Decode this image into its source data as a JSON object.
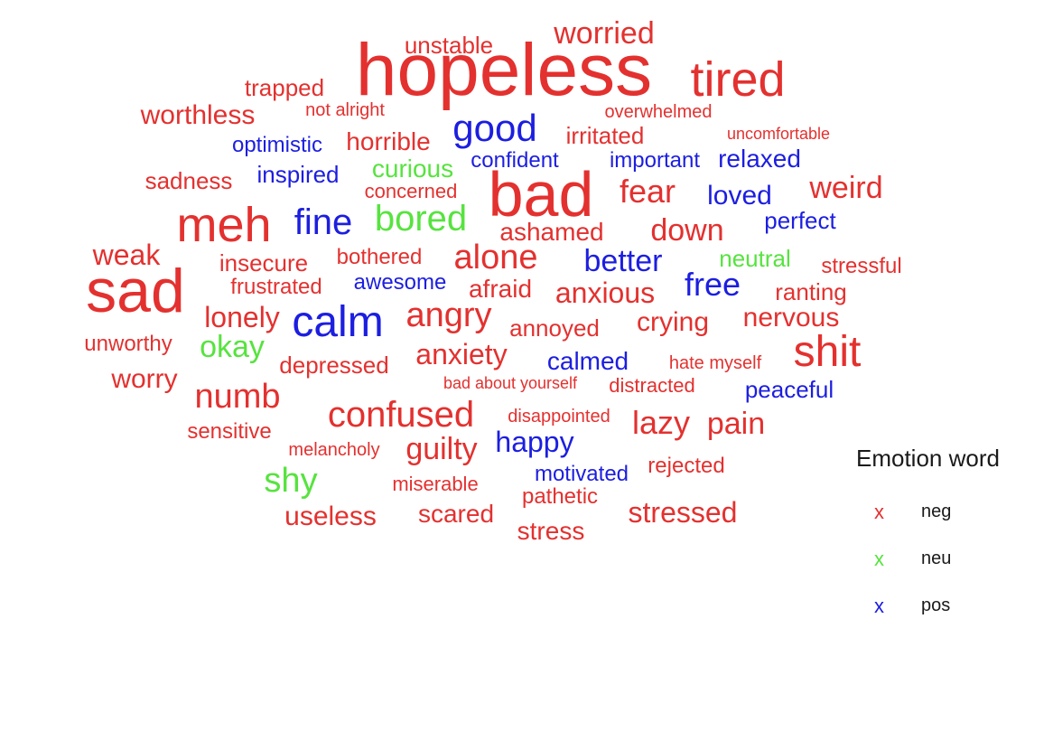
{
  "legend": {
    "title": "Emotion word",
    "marker": "x",
    "items": [
      {
        "label": "neg",
        "color": "#e3312f"
      },
      {
        "label": "neu",
        "color": "#57e33f"
      },
      {
        "label": "pos",
        "color": "#1c1ee0"
      }
    ]
  },
  "words": [
    {
      "text": "hopeless",
      "cat": "neg"
    },
    {
      "text": "bad",
      "cat": "neg"
    },
    {
      "text": "sad",
      "cat": "neg"
    },
    {
      "text": "meh",
      "cat": "neg"
    },
    {
      "text": "tired",
      "cat": "neg"
    },
    {
      "text": "shit",
      "cat": "neg"
    },
    {
      "text": "calm",
      "cat": "pos"
    },
    {
      "text": "confused",
      "cat": "neg"
    },
    {
      "text": "good",
      "cat": "pos"
    },
    {
      "text": "bored",
      "cat": "neu"
    },
    {
      "text": "fine",
      "cat": "pos"
    },
    {
      "text": "alone",
      "cat": "neg"
    },
    {
      "text": "worried",
      "cat": "neg"
    },
    {
      "text": "angry",
      "cat": "neg"
    },
    {
      "text": "fear",
      "cat": "neg"
    },
    {
      "text": "weird",
      "cat": "neg"
    },
    {
      "text": "numb",
      "cat": "neg"
    },
    {
      "text": "shy",
      "cat": "neu"
    },
    {
      "text": "free",
      "cat": "pos"
    },
    {
      "text": "better",
      "cat": "pos"
    },
    {
      "text": "down",
      "cat": "neg"
    },
    {
      "text": "lazy",
      "cat": "neg"
    },
    {
      "text": "pain",
      "cat": "neg"
    },
    {
      "text": "guilty",
      "cat": "neg"
    },
    {
      "text": "happy",
      "cat": "pos"
    },
    {
      "text": "okay",
      "cat": "neu"
    },
    {
      "text": "lonely",
      "cat": "neg"
    },
    {
      "text": "anxious",
      "cat": "neg"
    },
    {
      "text": "anxiety",
      "cat": "neg"
    },
    {
      "text": "crying",
      "cat": "neg"
    },
    {
      "text": "nervous",
      "cat": "neg"
    },
    {
      "text": "useless",
      "cat": "neg"
    },
    {
      "text": "stressed",
      "cat": "neg"
    },
    {
      "text": "weak",
      "cat": "neg"
    },
    {
      "text": "worry",
      "cat": "neg"
    },
    {
      "text": "worthless",
      "cat": "neg"
    },
    {
      "text": "loved",
      "cat": "pos"
    },
    {
      "text": "relaxed",
      "cat": "pos"
    },
    {
      "text": "horrible",
      "cat": "neg"
    },
    {
      "text": "curious",
      "cat": "neu"
    },
    {
      "text": "unstable",
      "cat": "neg"
    },
    {
      "text": "trapped",
      "cat": "neg"
    },
    {
      "text": "irritated",
      "cat": "neg"
    },
    {
      "text": "scared",
      "cat": "neg"
    },
    {
      "text": "ashamed",
      "cat": "neg"
    },
    {
      "text": "afraid",
      "cat": "neg"
    },
    {
      "text": "calmed",
      "cat": "pos"
    },
    {
      "text": "perfect",
      "cat": "pos"
    },
    {
      "text": "neutral",
      "cat": "neu"
    },
    {
      "text": "ranting",
      "cat": "neg"
    },
    {
      "text": "stress",
      "cat": "neg"
    },
    {
      "text": "insecure",
      "cat": "neg"
    },
    {
      "text": "annoyed",
      "cat": "neg"
    },
    {
      "text": "depressed",
      "cat": "neg"
    },
    {
      "text": "peaceful",
      "cat": "pos"
    },
    {
      "text": "inspired",
      "cat": "pos"
    },
    {
      "text": "sadness",
      "cat": "neg"
    },
    {
      "text": "unworthy",
      "cat": "neg"
    },
    {
      "text": "sensitive",
      "cat": "neg"
    },
    {
      "text": "optimistic",
      "cat": "pos"
    },
    {
      "text": "important",
      "cat": "pos"
    },
    {
      "text": "confident",
      "cat": "pos"
    },
    {
      "text": "stressful",
      "cat": "neg"
    },
    {
      "text": "bothered",
      "cat": "neg"
    },
    {
      "text": "frustrated",
      "cat": "neg"
    },
    {
      "text": "awesome",
      "cat": "pos"
    },
    {
      "text": "concerned",
      "cat": "neg"
    },
    {
      "text": "motivated",
      "cat": "pos"
    },
    {
      "text": "rejected",
      "cat": "neg"
    },
    {
      "text": "pathetic",
      "cat": "neg"
    },
    {
      "text": "miserable",
      "cat": "neg"
    },
    {
      "text": "melancholy",
      "cat": "neg"
    },
    {
      "text": "disappointed",
      "cat": "neg"
    },
    {
      "text": "distracted",
      "cat": "neg"
    },
    {
      "text": "hate myself",
      "cat": "neg"
    },
    {
      "text": "overwhelmed",
      "cat": "neg"
    },
    {
      "text": "not alright",
      "cat": "neg"
    },
    {
      "text": "uncomfortable",
      "cat": "neg"
    },
    {
      "text": "bad about yourself",
      "cat": "neg"
    }
  ]
}
